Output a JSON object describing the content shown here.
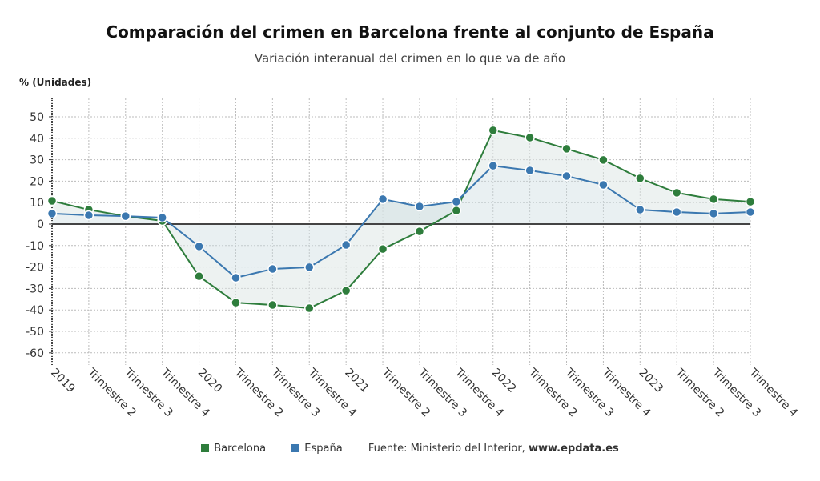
{
  "chart_data": {
    "type": "line",
    "title": "Comparación del crimen en Barcelona frente al conjunto de España",
    "subtitle": "Variación interanual del crimen en lo que va de año",
    "ylabel": "% (Unidades)",
    "xlabel": "",
    "ylim": [
      -65,
      58
    ],
    "yticks": [
      50,
      40,
      30,
      20,
      10,
      0,
      -10,
      -20,
      -30,
      -40,
      -50,
      -60
    ],
    "grid": true,
    "legend_position": "bottom",
    "categories": [
      "2019",
      "Trimestre 2",
      "Trimestre 3",
      "Trimestre 4",
      "2020",
      "Trimestre 2",
      "Trimestre 3",
      "Trimestre 4",
      "2021",
      "Trimestre 2",
      "Trimestre 3",
      "Trimestre 4",
      "2022",
      "Trimestre 2",
      "Trimestre 3",
      "Trimestre 4",
      "2023",
      "Trimestre 2",
      "Trimestre 3",
      "Trimestre 4"
    ],
    "series": [
      {
        "name": "Barcelona",
        "color": "#2e7d3c",
        "values": [
          10.8,
          6.7,
          3.7,
          1.5,
          -24.3,
          -36.6,
          -37.7,
          -39.2,
          -31.0,
          -11.6,
          -3.4,
          6.3,
          43.7,
          40.3,
          35.1,
          29.9,
          21.3,
          14.6,
          11.6,
          10.4
        ]
      },
      {
        "name": "España",
        "color": "#3b78b0",
        "values": [
          4.9,
          4.1,
          3.7,
          3.0,
          -10.4,
          -25.0,
          -20.9,
          -20.1,
          -9.7,
          11.6,
          8.2,
          10.4,
          27.2,
          25.0,
          22.4,
          18.3,
          6.7,
          5.6,
          4.9,
          5.6
        ]
      }
    ]
  },
  "source": {
    "label": "Fuente: Ministerio del Interior, ",
    "site": "www.epdata.es"
  }
}
